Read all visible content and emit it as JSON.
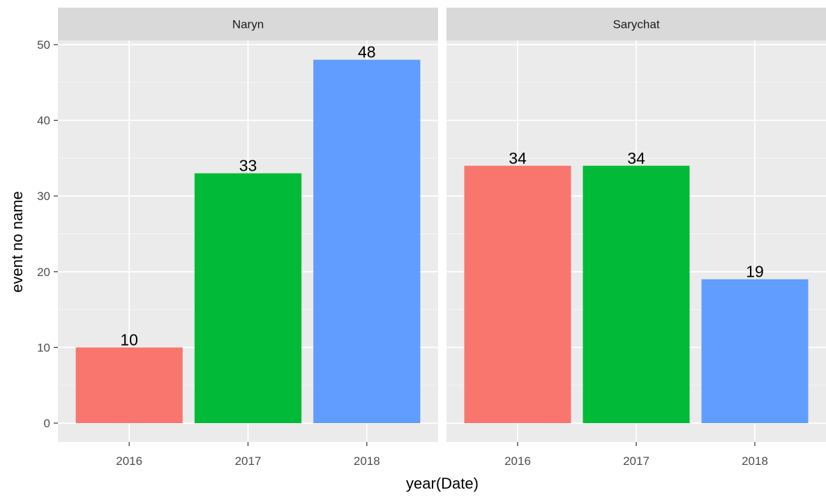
{
  "chart_data": {
    "type": "bar",
    "xlabel": "year(Date)",
    "ylabel": "event no name",
    "ylim": [
      0,
      50
    ],
    "yticks": [
      0,
      10,
      20,
      30,
      40,
      50
    ],
    "grid": true,
    "legend": "none",
    "categories": [
      "2016",
      "2017",
      "2018"
    ],
    "colors": [
      "#F8766D",
      "#00BA38",
      "#619CFF"
    ],
    "facets": [
      {
        "name": "Naryn",
        "values": [
          10,
          33,
          48
        ]
      },
      {
        "name": "Sarychat",
        "values": [
          34,
          34,
          19
        ]
      }
    ]
  },
  "colors": {
    "panel_bg": "#EBEBEB",
    "strip_bg": "#D9D9D9",
    "grid_major": "#FFFFFF",
    "tick_mark": "#333333"
  }
}
